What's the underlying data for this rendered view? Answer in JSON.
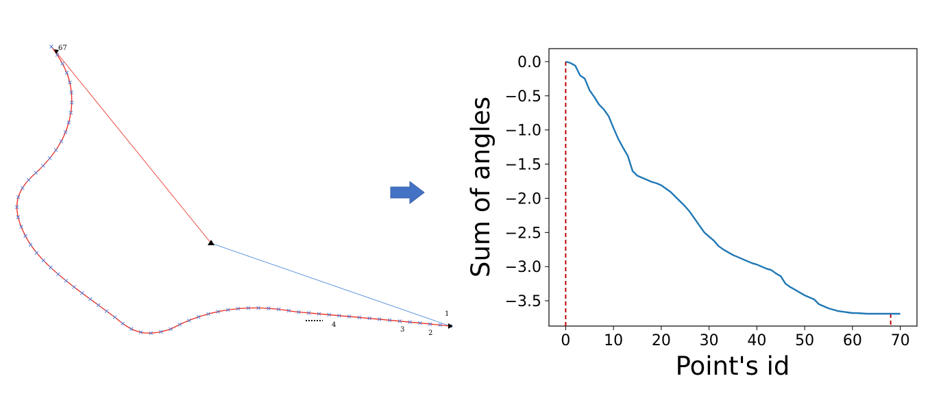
{
  "left_diagram": {
    "point_labels": [
      {
        "id": "start",
        "text": "1"
      },
      {
        "id": "p2",
        "text": "2"
      },
      {
        "id": "p3",
        "text": "3"
      },
      {
        "id": "p4",
        "text": "4"
      },
      {
        "id": "end",
        "text": "67"
      }
    ],
    "colors": {
      "curve": "#e8271a",
      "markers": "#4a78d8",
      "red_chord": "#e8271a",
      "blue_chord": "#3c7fd6",
      "arrow": "#4472c4"
    }
  },
  "chart_data": {
    "type": "line",
    "xlabel": "Point's id",
    "ylabel": "Sum of angles",
    "xlim": [
      -3.5,
      73.5
    ],
    "ylim": [
      -3.87,
      0.19
    ],
    "xticks": [
      0,
      10,
      20,
      30,
      40,
      50,
      60,
      70
    ],
    "yticks": [
      0.0,
      -0.5,
      -1.0,
      -1.5,
      -2.0,
      -2.5,
      -3.0,
      -3.5
    ],
    "ytick_labels": [
      "0.0",
      "−0.5",
      "−1.0",
      "−1.5",
      "−2.0",
      "−2.5",
      "−3.0",
      "−3.5"
    ],
    "xtick_labels": [
      "0",
      "10",
      "20",
      "30",
      "40",
      "50",
      "60",
      "70"
    ],
    "series": [
      {
        "color": "#1f77b4",
        "x": [
          0,
          1,
          2,
          3,
          4,
          5,
          6,
          7,
          8,
          9,
          10,
          11,
          12,
          13,
          14,
          15,
          16,
          17,
          18,
          19,
          20,
          21,
          22,
          23,
          24,
          25,
          26,
          27,
          28,
          29,
          30,
          31,
          32,
          33,
          34,
          35,
          36,
          37,
          38,
          39,
          40,
          41,
          42,
          43,
          44,
          45,
          46,
          47,
          48,
          49,
          50,
          51,
          52,
          53,
          54,
          55,
          56,
          57,
          58,
          59,
          60,
          61,
          62,
          63,
          64,
          65,
          66,
          67,
          68,
          69,
          70
        ],
        "y": [
          0.0,
          -0.02,
          -0.06,
          -0.2,
          -0.25,
          -0.42,
          -0.52,
          -0.63,
          -0.7,
          -0.8,
          -0.97,
          -1.13,
          -1.26,
          -1.38,
          -1.6,
          -1.67,
          -1.7,
          -1.73,
          -1.76,
          -1.78,
          -1.81,
          -1.86,
          -1.91,
          -1.98,
          -2.05,
          -2.12,
          -2.2,
          -2.3,
          -2.4,
          -2.5,
          -2.56,
          -2.62,
          -2.7,
          -2.75,
          -2.79,
          -2.83,
          -2.86,
          -2.89,
          -2.92,
          -2.95,
          -2.97,
          -3.0,
          -3.03,
          -3.05,
          -3.1,
          -3.14,
          -3.25,
          -3.3,
          -3.34,
          -3.38,
          -3.42,
          -3.45,
          -3.48,
          -3.55,
          -3.58,
          -3.61,
          -3.63,
          -3.65,
          -3.66,
          -3.67,
          -3.68,
          -3.68,
          -3.685,
          -3.69,
          -3.69,
          -3.69,
          -3.69,
          -3.69,
          -3.69,
          -3.69,
          -3.69
        ]
      }
    ],
    "vlines": [
      {
        "x": 0,
        "y_from": 0.0,
        "color": "#c00000",
        "style": "dashed"
      },
      {
        "x": 68,
        "y_from": -3.69,
        "color": "#c00000",
        "style": "dashed"
      }
    ]
  }
}
